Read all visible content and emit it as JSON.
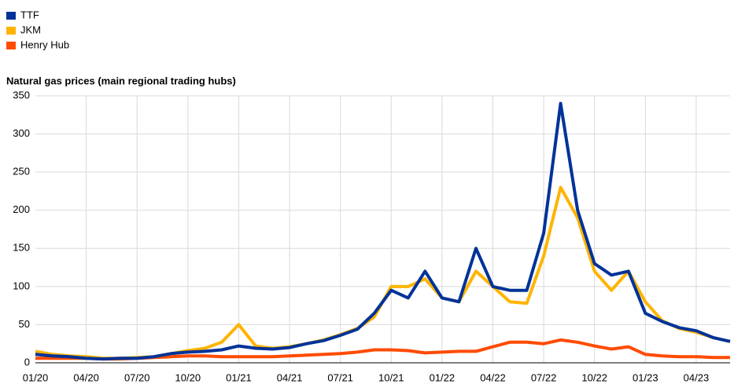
{
  "chart_data": {
    "type": "line",
    "title": "Natural gas prices (main regional trading hubs)",
    "legend": "top-left",
    "grid": true,
    "categories": [
      "01/20",
      null,
      null,
      "04/20",
      null,
      null,
      "07/20",
      null,
      null,
      "10/20",
      null,
      null,
      "01/21",
      null,
      null,
      "04/21",
      null,
      null,
      "07/21",
      null,
      null,
      "10/21",
      null,
      null,
      "01/22",
      null,
      null,
      "04/22",
      null,
      null,
      "07/22",
      null,
      null,
      "10/22",
      null,
      null,
      "01/23",
      null,
      null,
      "04/23",
      null,
      null
    ],
    "ylim": [
      0,
      350
    ],
    "yticks": [
      0,
      50,
      100,
      150,
      200,
      250,
      300,
      350
    ],
    "series": [
      {
        "name": "TTF",
        "color": "#003299",
        "values": [
          11,
          9,
          8,
          6,
          5,
          6,
          6,
          8,
          12,
          14,
          15,
          17,
          22,
          19,
          18,
          20,
          25,
          29,
          36,
          44,
          65,
          95,
          85,
          120,
          85,
          80,
          150,
          100,
          95,
          95,
          170,
          340,
          200,
          130,
          115,
          120,
          65,
          54,
          46,
          42,
          33,
          28
        ]
      },
      {
        "name": "JKM",
        "color": "#ffb400",
        "values": [
          15,
          11,
          9,
          8,
          6,
          6,
          7,
          8,
          12,
          16,
          19,
          27,
          50,
          22,
          19,
          21,
          25,
          30,
          37,
          45,
          60,
          100,
          100,
          110,
          85,
          80,
          120,
          100,
          80,
          78,
          140,
          230,
          190,
          120,
          95,
          120,
          80,
          55,
          45,
          40,
          33,
          28
        ]
      },
      {
        "name": "Henry Hub",
        "color": "#ff4b00",
        "values": [
          6,
          6,
          6,
          6,
          5,
          5,
          6,
          7,
          8,
          9,
          9,
          8,
          8,
          8,
          8,
          9,
          10,
          11,
          12,
          14,
          17,
          17,
          16,
          13,
          14,
          15,
          15,
          21,
          27,
          27,
          25,
          30,
          27,
          22,
          18,
          21,
          11,
          9,
          8,
          8,
          7,
          7
        ]
      }
    ]
  }
}
